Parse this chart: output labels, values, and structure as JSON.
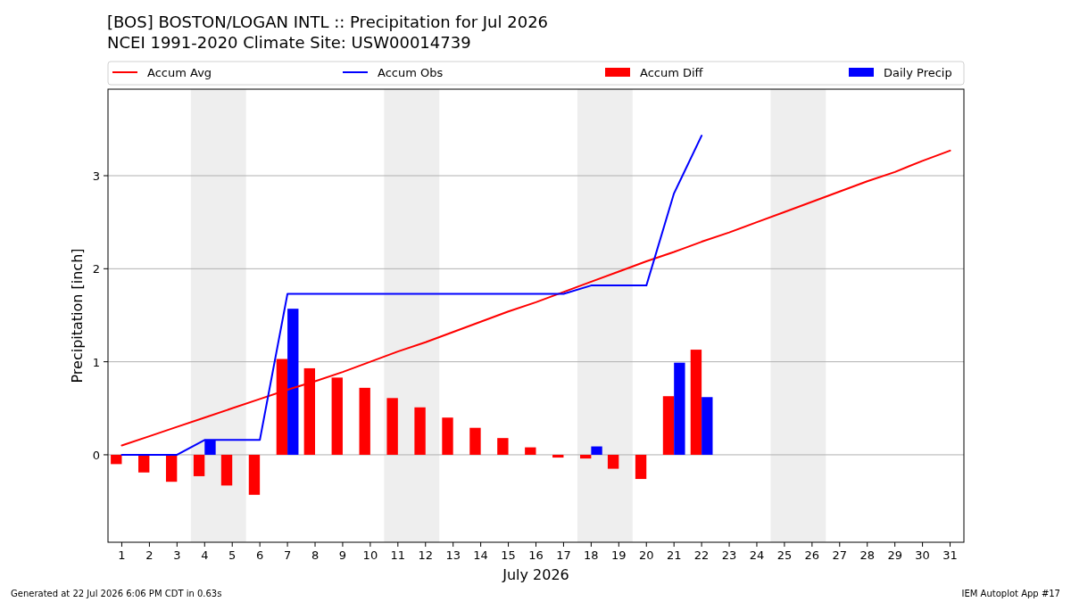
{
  "chart_data": {
    "type": "bar",
    "title": "[BOS] BOSTON/LOGAN INTL :: Precipitation for Jul 2026",
    "subtitle": "NCEI 1991-2020 Climate Site: USW00014739",
    "xlabel": "July 2026",
    "ylabel": "Precipitation [inch]",
    "x": [
      1,
      2,
      3,
      4,
      5,
      6,
      7,
      8,
      9,
      10,
      11,
      12,
      13,
      14,
      15,
      16,
      17,
      18,
      19,
      20,
      21,
      22,
      23,
      24,
      25,
      26,
      27,
      28,
      29,
      30,
      31
    ],
    "series": [
      {
        "name": "Accum Avg",
        "type": "line",
        "color": "#ff0000",
        "values": [
          0.1,
          0.2,
          0.3,
          0.4,
          0.5,
          0.6,
          0.7,
          0.79,
          0.89,
          1.0,
          1.11,
          1.21,
          1.32,
          1.43,
          1.54,
          1.64,
          1.75,
          1.86,
          1.97,
          2.08,
          2.18,
          2.29,
          2.39,
          2.5,
          2.61,
          2.72,
          2.83,
          2.94,
          3.04,
          3.16,
          3.27
        ]
      },
      {
        "name": "Accum Obs",
        "type": "line",
        "color": "#0000ff",
        "values": [
          0,
          0,
          0,
          0.16,
          0.16,
          0.16,
          1.73,
          1.73,
          1.73,
          1.73,
          1.73,
          1.73,
          1.73,
          1.73,
          1.73,
          1.73,
          1.73,
          1.82,
          1.82,
          1.82,
          2.81,
          3.43,
          null,
          null,
          null,
          null,
          null,
          null,
          null,
          null,
          null
        ]
      },
      {
        "name": "Accum Diff",
        "color": "#ff0000",
        "values": [
          -0.1,
          -0.19,
          -0.29,
          -0.23,
          -0.33,
          -0.43,
          1.03,
          0.93,
          0.83,
          0.72,
          0.61,
          0.51,
          0.4,
          0.29,
          0.18,
          0.08,
          -0.03,
          -0.04,
          -0.15,
          -0.26,
          0.63,
          1.13,
          null,
          null,
          null,
          null,
          null,
          null,
          null,
          null,
          null
        ]
      },
      {
        "name": "Daily Precip",
        "color": "#0000ff",
        "values": [
          0,
          0,
          0,
          0.16,
          0,
          0,
          1.57,
          0,
          0,
          0,
          0,
          0,
          0,
          0,
          0,
          0,
          0,
          0.09,
          0,
          0,
          0.99,
          0.62,
          null,
          null,
          null,
          null,
          null,
          null,
          null,
          null,
          null
        ]
      }
    ],
    "xlim": [
      0.5,
      31.5
    ],
    "xticks": [
      1,
      2,
      3,
      4,
      5,
      6,
      7,
      8,
      9,
      10,
      11,
      12,
      13,
      14,
      15,
      16,
      17,
      18,
      19,
      20,
      21,
      22,
      23,
      24,
      25,
      26,
      27,
      28,
      29,
      30,
      31
    ],
    "ylim": [
      -0.94,
      3.93
    ],
    "yticks": [
      0,
      1,
      2,
      3
    ],
    "bands": [
      {
        "axis": "x",
        "from": 3.5,
        "to": 5.5,
        "color": "#eeeeee"
      },
      {
        "axis": "x",
        "from": 10.5,
        "to": 12.5,
        "color": "#eeeeee"
      },
      {
        "axis": "x",
        "from": 17.5,
        "to": 19.5,
        "color": "#eeeeee"
      },
      {
        "axis": "x",
        "from": 24.5,
        "to": 26.5,
        "color": "#eeeeee"
      }
    ],
    "grid": "y",
    "legend": "top",
    "annotations": [
      "Generated at 22 Jul 2026 6:06 PM CDT in 0.63s",
      "IEM Autoplot App #17"
    ]
  }
}
